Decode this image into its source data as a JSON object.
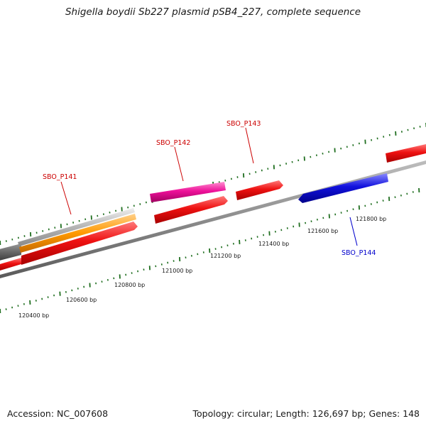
{
  "title": "Shigella boydii Sb227 plasmid pSB4_227, complete sequence",
  "footer": {
    "accession": "Accession: NC_007608",
    "summary": "Topology: circular; Length: 126,697 bp; Genes: 148"
  },
  "colors": {
    "forward_label": "#cc0000",
    "reverse_label": "#0000cc",
    "tick": "#1f6e1f",
    "gene_red": "#ee1111",
    "gene_magenta": "#ee1199",
    "gene_blue": "#1111dd",
    "gene_orange": "#ff9900",
    "gene_gray": "#b4b4b4",
    "gene_darkgray": "#666666"
  },
  "gene_labels": [
    {
      "id": "sbo-p141",
      "text": "SBO_P141",
      "strand": "forward"
    },
    {
      "id": "sbo-p142",
      "text": "SBO_P142",
      "strand": "forward"
    },
    {
      "id": "sbo-p143",
      "text": "SBO_P143",
      "strand": "forward"
    },
    {
      "id": "sbo-p144",
      "text": "SBO_P144",
      "strand": "reverse"
    }
  ],
  "ruler_labels": [
    "120400 bp",
    "120600 bp",
    "120800 bp",
    "121000 bp",
    "121200 bp",
    "121400 bp",
    "121600 bp",
    "121800 bp"
  ]
}
